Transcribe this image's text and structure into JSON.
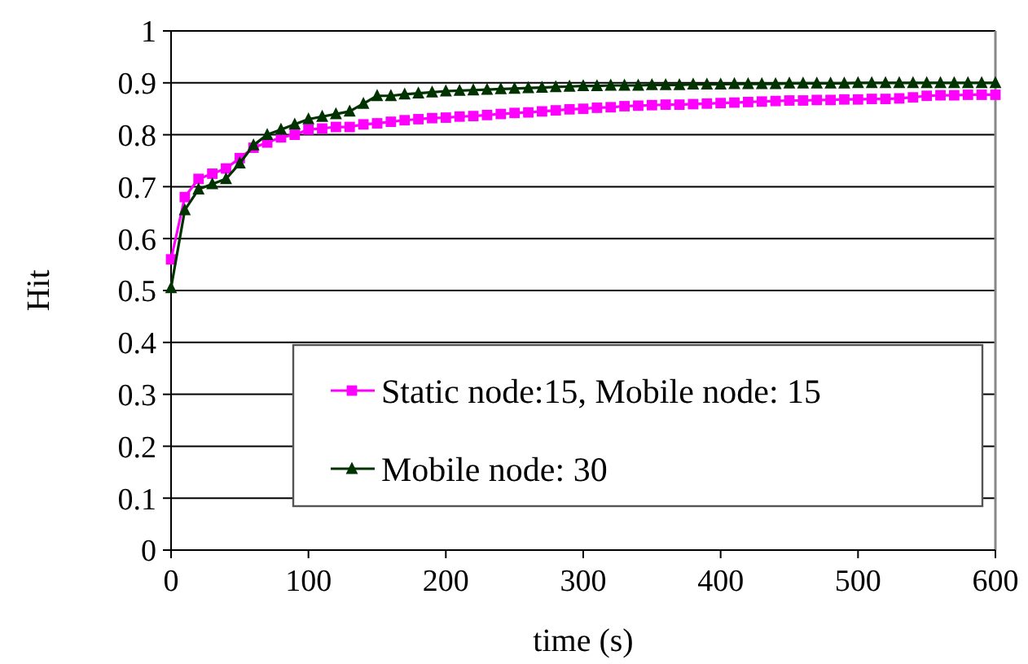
{
  "chart_data": {
    "type": "line",
    "xlabel": "time (s)",
    "ylabel": "Hit",
    "xlim": [
      0,
      600
    ],
    "ylim": [
      0,
      1
    ],
    "xticks": [
      0,
      100,
      200,
      300,
      400,
      500,
      600
    ],
    "yticks": [
      0,
      0.1,
      0.2,
      0.3,
      0.4,
      0.5,
      0.6,
      0.7,
      0.8,
      0.9,
      1
    ],
    "grid": "y",
    "legend": "bottom right",
    "line_style": "solid",
    "x": [
      0,
      10,
      20,
      30,
      40,
      50,
      60,
      70,
      80,
      90,
      100,
      110,
      120,
      130,
      140,
      150,
      160,
      170,
      180,
      190,
      200,
      210,
      220,
      230,
      240,
      250,
      260,
      270,
      280,
      290,
      300,
      310,
      320,
      330,
      340,
      350,
      360,
      370,
      380,
      390,
      400,
      410,
      420,
      430,
      440,
      450,
      460,
      470,
      480,
      490,
      500,
      510,
      520,
      530,
      540,
      550,
      560,
      570,
      580,
      590,
      600
    ],
    "series": [
      {
        "name": "Static node:15, Mobile node: 15",
        "color": "#ff00ff",
        "marker": "square",
        "values": [
          0.56,
          0.68,
          0.715,
          0.725,
          0.735,
          0.755,
          0.775,
          0.785,
          0.795,
          0.8,
          0.81,
          0.812,
          0.815,
          0.815,
          0.82,
          0.822,
          0.825,
          0.828,
          0.83,
          0.832,
          0.833,
          0.835,
          0.836,
          0.838,
          0.84,
          0.842,
          0.843,
          0.845,
          0.847,
          0.849,
          0.85,
          0.852,
          0.853,
          0.855,
          0.856,
          0.857,
          0.858,
          0.858,
          0.859,
          0.86,
          0.861,
          0.862,
          0.863,
          0.864,
          0.865,
          0.866,
          0.866,
          0.867,
          0.867,
          0.868,
          0.868,
          0.869,
          0.869,
          0.87,
          0.872,
          0.875,
          0.876,
          0.876,
          0.877,
          0.877,
          0.877
        ]
      },
      {
        "name": "Mobile node: 30",
        "color": "#003300",
        "marker": "triangle",
        "values": [
          0.505,
          0.655,
          0.695,
          0.705,
          0.715,
          0.745,
          0.78,
          0.8,
          0.81,
          0.82,
          0.83,
          0.835,
          0.84,
          0.845,
          0.86,
          0.875,
          0.875,
          0.878,
          0.88,
          0.882,
          0.884,
          0.885,
          0.886,
          0.887,
          0.888,
          0.889,
          0.89,
          0.891,
          0.892,
          0.893,
          0.894,
          0.894,
          0.895,
          0.895,
          0.895,
          0.896,
          0.896,
          0.896,
          0.897,
          0.897,
          0.897,
          0.898,
          0.898,
          0.898,
          0.898,
          0.899,
          0.899,
          0.899,
          0.899,
          0.899,
          0.9,
          0.9,
          0.9,
          0.9,
          0.9,
          0.9,
          0.9,
          0.9,
          0.9,
          0.9,
          0.9
        ]
      }
    ]
  }
}
